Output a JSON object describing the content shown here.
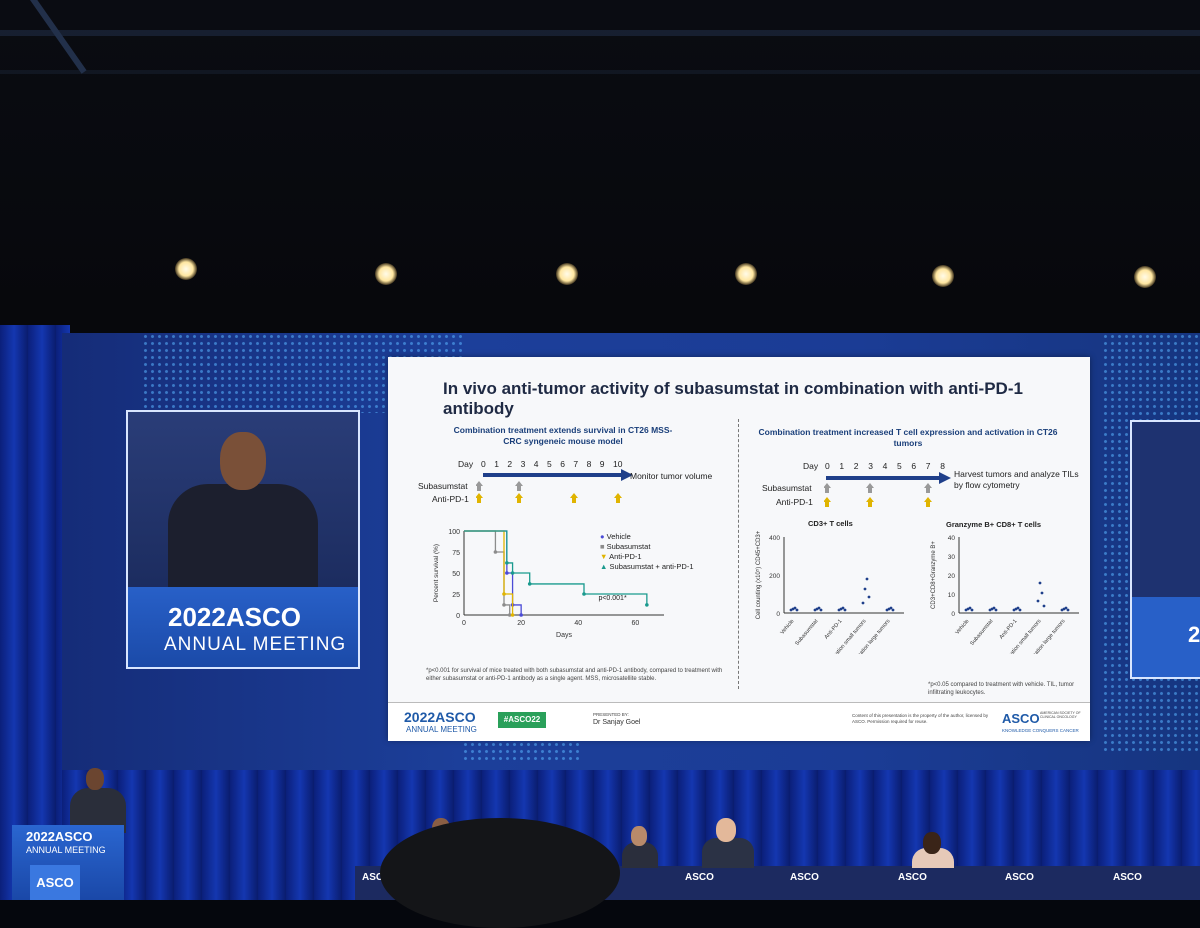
{
  "slide": {
    "title": "In vivo anti-tumor activity of subasumstat in combination with anti-PD-1 antibody",
    "left": {
      "heading": "Combination treatment extends survival in CT26 MSS-CRC syngeneic mouse model",
      "day_label": "Day",
      "days": [
        "0",
        "1",
        "2",
        "3",
        "4",
        "5",
        "6",
        "7",
        "8",
        "9",
        "10"
      ],
      "monitor": "Monitor tumor volume",
      "row1": "Subasumstat",
      "row2": "Anti-PD-1",
      "legend": [
        "Vehicle",
        "Subasumstat",
        "Anti-PD-1",
        "Subasumstat + anti-PD-1"
      ],
      "ylabel": "Percent survival (%)",
      "xlabel": "Days",
      "yticks": [
        "100",
        "75",
        "50",
        "25",
        "0"
      ],
      "xticks": [
        "0",
        "20",
        "40",
        "60"
      ],
      "pvalue": "p<0.001*",
      "footnote": "*p<0.001 for survival of mice treated with both subasumstat and anti-PD-1 antibody, compared to treatment with either subasumstat or anti-PD-1 antibody as a single agent. MSS, microsatellite stable."
    },
    "right": {
      "heading": "Combination treatment increased T cell expression and activation in CT26 tumors",
      "day_label": "Day",
      "days": [
        "0",
        "1",
        "2",
        "3",
        "4",
        "5",
        "6",
        "7",
        "8"
      ],
      "harvest": "Harvest tumors and analyze TILs by flow cytometry",
      "row1": "Subasumstat",
      "row2": "Anti-PD-1",
      "chart1_title": "CD3+ T cells",
      "chart1_ylabel": "Cell counting (x10⁵) CD45+CD3+",
      "chart1_yticks": [
        "400",
        "200",
        "0"
      ],
      "chart2_title": "Granzyme B+ CD8+ T cells",
      "chart2_ylabel": "CD3+CD8+Granzyme B+",
      "chart2_yticks": [
        "40",
        "30",
        "20",
        "10",
        "0"
      ],
      "xcats": [
        "Vehicle",
        "Subasumstat",
        "Anti-PD-1",
        "Combination small tumors",
        "Combination large tumors"
      ],
      "footnote": "*p<0.05 compared to treatment with vehicle. TIL, tumor infiltrating leukocytes."
    },
    "footer": {
      "year": "2022",
      "asco": "ASCO",
      "meeting": "ANNUAL MEETING",
      "hashtag": "#ASCO22",
      "presented_by": "PRESENTED BY:",
      "presenter": "Dr Sanjay Goel",
      "copyright": "Content of this presentation is the property of the author, licensed by ASCO. Permission required for reuse.",
      "asco_right": "ASCO",
      "asco_sub": "AMERICAN SOCIETY OF CLINICAL ONCOLOGY",
      "tagline": "KNOWLEDGE CONQUERS CANCER"
    }
  },
  "chart_data": {
    "type": "line",
    "x": [
      0,
      20,
      40,
      60
    ],
    "series": [
      {
        "name": "Vehicle",
        "values": [
          [
            0,
            100
          ],
          [
            15,
            100
          ],
          [
            15,
            50
          ],
          [
            17,
            50
          ],
          [
            17,
            12
          ],
          [
            20,
            12
          ],
          [
            20,
            0
          ]
        ]
      },
      {
        "name": "Subasumstat",
        "values": [
          [
            0,
            100
          ],
          [
            11,
            100
          ],
          [
            11,
            75
          ],
          [
            14,
            75
          ],
          [
            14,
            12
          ],
          [
            16,
            12
          ],
          [
            16,
            0
          ]
        ]
      },
      {
        "name": "Anti-PD-1",
        "values": [
          [
            0,
            100
          ],
          [
            14,
            100
          ],
          [
            14,
            25
          ],
          [
            17,
            25
          ],
          [
            17,
            0
          ]
        ]
      },
      {
        "name": "Subasumstat + anti-PD-1",
        "values": [
          [
            0,
            100
          ],
          [
            15,
            100
          ],
          [
            15,
            62
          ],
          [
            17,
            62
          ],
          [
            17,
            50
          ],
          [
            23,
            50
          ],
          [
            23,
            37
          ],
          [
            42,
            37
          ],
          [
            42,
            25
          ],
          [
            64,
            25
          ],
          [
            64,
            12
          ]
        ]
      }
    ],
    "xlabel": "Days",
    "ylabel": "Percent survival (%)",
    "ylim": [
      0,
      100
    ],
    "xlim": [
      0,
      70
    ]
  },
  "video": {
    "year": "2022",
    "asco": "ASCO",
    "meeting": "ANNUAL MEETING"
  },
  "right_video": {
    "text": "2"
  },
  "stage": {
    "podium_title": "2022ASCO",
    "podium_meeting": "ANNUAL MEETING",
    "podium_logo": "ASCO",
    "table_labels": [
      "ASCO",
      "ASCO",
      "ASCO",
      "ASCO",
      "ASCO",
      "ASCO"
    ]
  },
  "colors": {
    "vehicle": "#4b4bd6",
    "subasumstat": "#8c8c8c",
    "anti_pd1": "#e0b400",
    "combo": "#1a9a8e",
    "asco_blue": "#1f5aa8"
  }
}
